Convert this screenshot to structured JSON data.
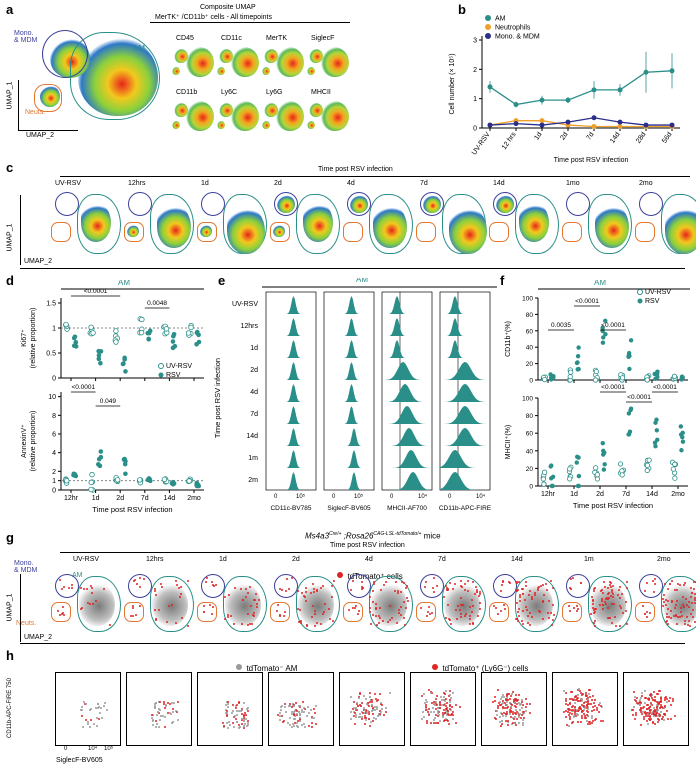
{
  "panels": {
    "a": {
      "label": "a",
      "title_line1": "Composite UMAP",
      "title_line2": "MerTK⁺ /CD11b⁺  cells - All timepoints",
      "axis_y": "UMAP_1",
      "axis_x": "UMAP_2",
      "gate_mono": "Mono.\n& MDM",
      "gate_am": "AM",
      "gate_neut": "Neuts.",
      "markers": [
        "CD45",
        "CD11c",
        "MerTK",
        "SiglecF",
        "CD11b",
        "Ly6C",
        "Ly6G",
        "MHCII"
      ]
    },
    "b": {
      "label": "b"
    },
    "c": {
      "label": "c",
      "title": "Time post RSV infection",
      "axis_y": "UMAP_1",
      "axis_x": "UMAP_2",
      "timepoints": [
        "UV-RSV",
        "12hrs",
        "1d",
        "2d",
        "4d",
        "7d",
        "14d",
        "1mo",
        "2mo"
      ]
    },
    "d": {
      "label": "d",
      "header": "AM",
      "top_ylabel": "Ki67⁺\n(relative proportion)",
      "bottom_ylabel": "AnnexinV⁺\n(relative proportion)",
      "xlabel": "Time post RSV infection",
      "xticks": [
        "12hr",
        "1d",
        "2d",
        "7d",
        "14d",
        "2mo"
      ],
      "top_pvals": [
        "<0.0001",
        "0.0048"
      ],
      "bottom_pvals": [
        "<0.0001",
        "0.049"
      ],
      "legend_uv": "UV-RSV",
      "legend_rsv": "RSV",
      "top_yticks": [
        "1.5",
        "1",
        "0.5",
        "0"
      ],
      "bottom_yticks": [
        "10",
        "8",
        "6",
        "4",
        "2",
        "1",
        "0"
      ]
    },
    "e": {
      "label": "e",
      "header": "AM",
      "ylabel": "Time post RSV infection",
      "rows": [
        "UV-RSV",
        "12hrs",
        "1d",
        "2d",
        "4d",
        "7d",
        "14d",
        "1m",
        "2m"
      ],
      "columns": [
        "CD11c-BV785",
        "SiglecF-BV605",
        "MHCII-AF700",
        "CD11b-APC-FIRE"
      ],
      "tick0": "0",
      "tick5": "10⁵",
      "tick4": "10⁴"
    },
    "f": {
      "label": "f",
      "header": "AM",
      "top_ylabel": "CD11b⁺(%)",
      "bottom_ylabel": "MHCII⁺(%)",
      "xlabel": "Time post RSV infection",
      "xticks": [
        "12hr",
        "1d",
        "2d",
        "7d",
        "14d",
        "2mo"
      ],
      "legend_uv": "UV-RSV",
      "legend_rsv": "RSV",
      "top_pvals": [
        "0.0035",
        "<0.0001",
        "<0.0001"
      ],
      "bottom_pvals": [
        "<0.0001",
        "<0.0001",
        "<0.0001"
      ],
      "top_yticks": [
        "100",
        "80",
        "60",
        "40",
        "20",
        "0"
      ],
      "bottom_yticks": [
        "100",
        "80",
        "60",
        "40",
        "20",
        "0"
      ]
    },
    "g": {
      "label": "g",
      "title_prefix": "Ms4a3",
      "title_sup1": "Cre/+",
      "title_mid": " ;Rosa26",
      "title_sup2": "CAG-LSL-tdTomato/+",
      "title_suffix": " mice",
      "subtitle": "Time post RSV infection",
      "legend": "tdTomato⁺ cells",
      "gate_mono": "Mono.\n& MDM",
      "gate_am": "AM",
      "gate_neut": "Neuts.",
      "axis_y": "UMAP_1",
      "axis_x": "UMAP_2",
      "timepoints": [
        "UV-RSV",
        "12hrs",
        "1d",
        "2d",
        "4d",
        "7d",
        "14d",
        "1m",
        "2mo"
      ]
    },
    "h": {
      "label": "h",
      "legend_grey": "tdTomato⁻ AM",
      "legend_red": "tdTomato⁺ (Ly6G⁻) cells",
      "ylabel": "CD11b-APC-FIRE 750",
      "xlabel": "SiglecF-BV605",
      "xticks": [
        "0",
        "10⁴",
        "10⁵"
      ]
    }
  },
  "chart_data": [
    {
      "type": "line",
      "panel": "b",
      "xlabel": "Time post RSV infection",
      "ylabel": "Cell number (× 10⁵)",
      "categories": [
        "UV-RSV",
        "12 hrs",
        "1d",
        "2d",
        "7d",
        "14d",
        "28d",
        "56d"
      ],
      "ylim": [
        0,
        3
      ],
      "yticks": [
        "3",
        "2",
        "1",
        "0"
      ],
      "legend_position": "top-left",
      "series": [
        {
          "name": "AM",
          "color": "#2a8f88",
          "values": [
            1.4,
            0.8,
            0.95,
            0.95,
            1.3,
            1.3,
            1.9,
            1.95
          ],
          "errors": [
            0.2,
            0.1,
            0.15,
            0.1,
            0.3,
            0.2,
            0.7,
            0.6
          ]
        },
        {
          "name": "Neutrophils",
          "color": "#f0a02a",
          "values": [
            0.1,
            0.25,
            0.25,
            0.1,
            0.05,
            0.05,
            0.05,
            0.05
          ],
          "errors": [
            0.02,
            0.05,
            0.05,
            0.03,
            0.01,
            0.01,
            0.01,
            0.01
          ]
        },
        {
          "name": "Mono. & MDM",
          "color": "#2b2f8a",
          "values": [
            0.1,
            0.15,
            0.1,
            0.2,
            0.35,
            0.2,
            0.1,
            0.1
          ],
          "errors": [
            0.02,
            0.03,
            0.02,
            0.05,
            0.05,
            0.03,
            0.02,
            0.02
          ]
        }
      ]
    }
  ]
}
